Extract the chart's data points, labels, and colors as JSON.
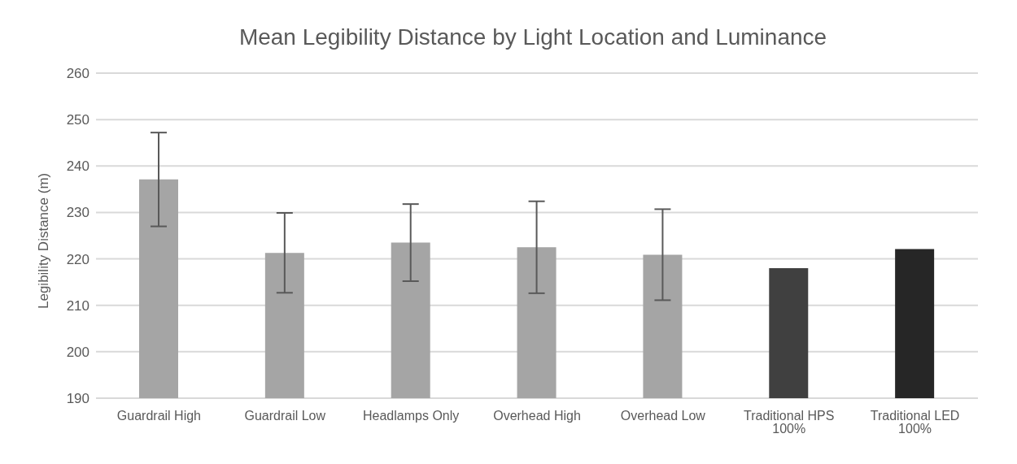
{
  "chart_data": {
    "type": "bar",
    "title": "Mean Legibility Distance by Light Location and Luminance",
    "ylabel": "Legibility Distance (m)",
    "categories": [
      "Guardrail High",
      "Guardrail Low",
      "Headlamps Only",
      "Overhead High",
      "Overhead Low",
      "Traditional HPS 100%",
      "Traditional LED 100%"
    ],
    "values": [
      237.1,
      221.3,
      223.5,
      222.5,
      220.9,
      218.0,
      222.1
    ],
    "colors": [
      "#a5a5a5",
      "#a5a5a5",
      "#a5a5a5",
      "#a5a5a5",
      "#a5a5a5",
      "#404040",
      "#262626"
    ],
    "errors": [
      10.1,
      8.6,
      8.3,
      9.9,
      9.8,
      null,
      null
    ],
    "ylim": [
      190,
      260
    ],
    "yticks": [
      190,
      200,
      210,
      220,
      230,
      240,
      250,
      260
    ],
    "grid": "y",
    "legend": false
  }
}
